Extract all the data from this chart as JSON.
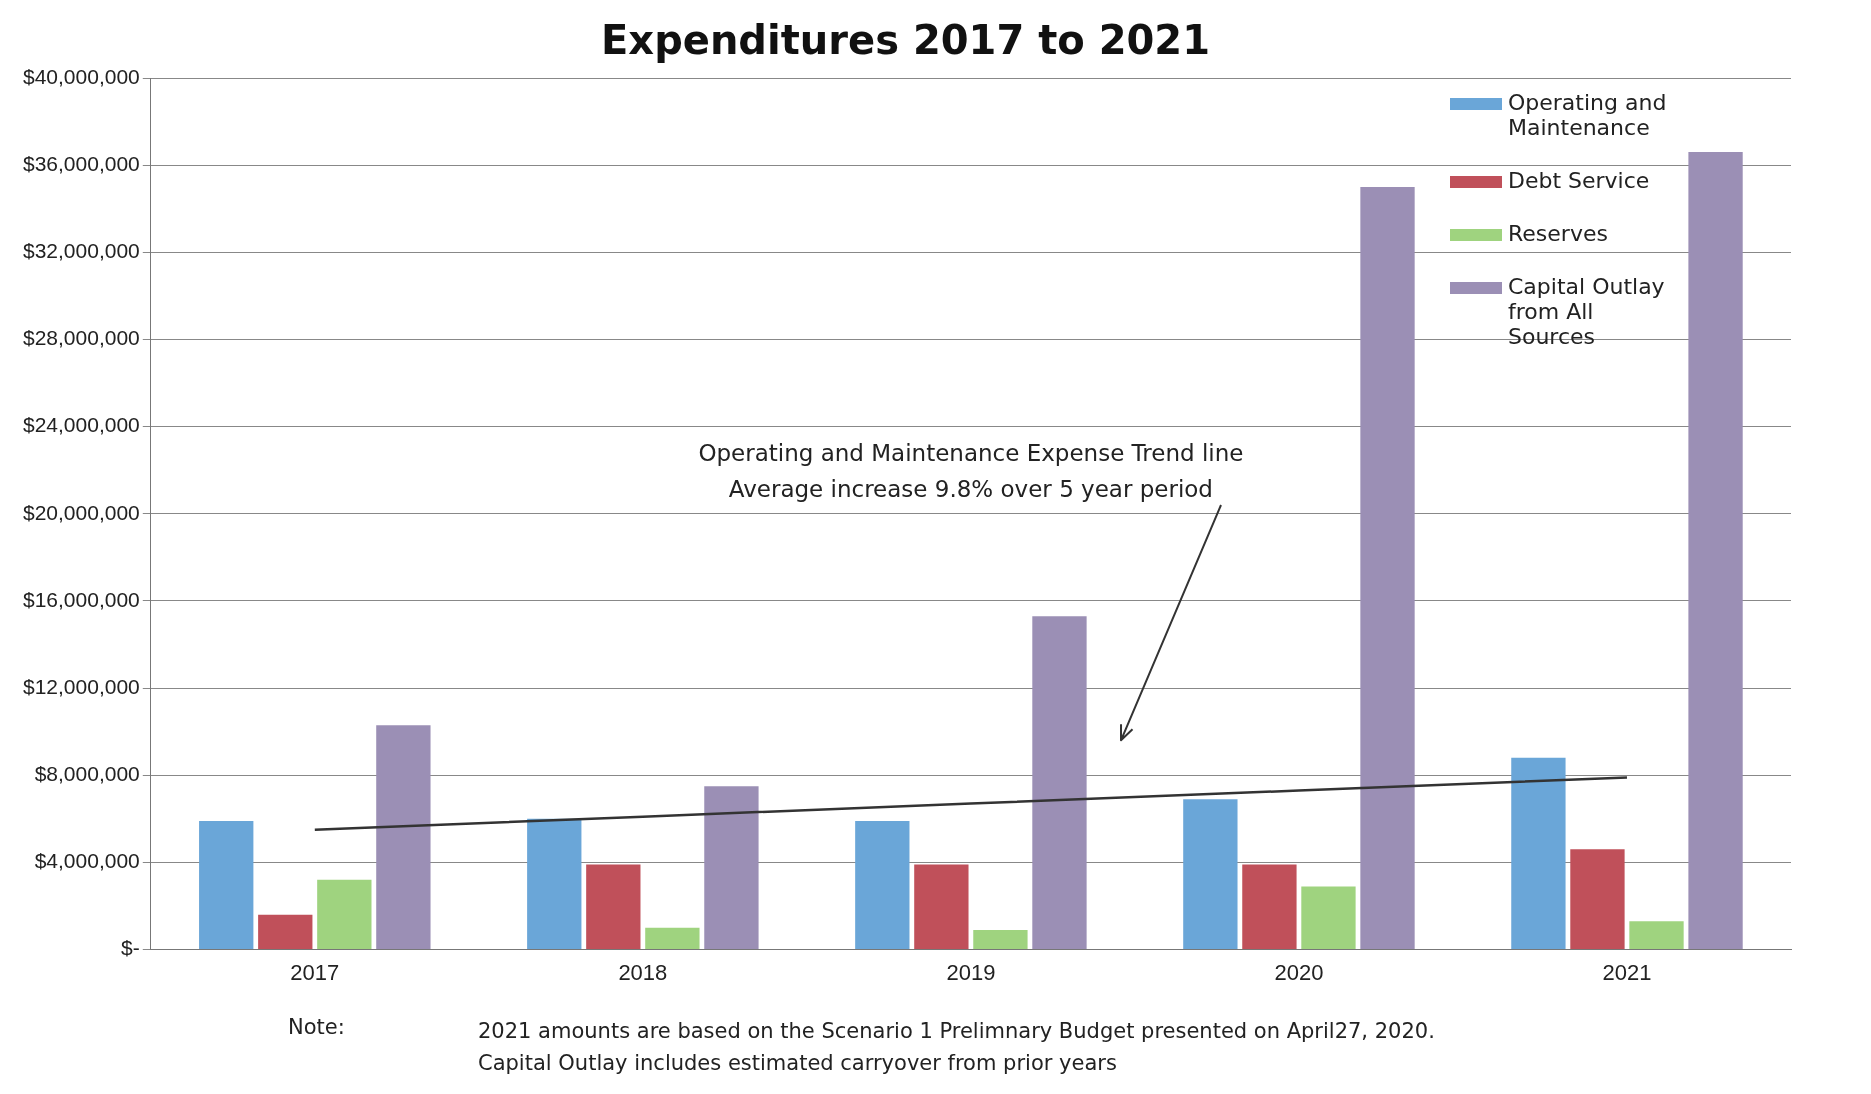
{
  "chart_data": {
    "type": "bar",
    "title": "Expenditures 2017 to 2021",
    "categories": [
      "2017",
      "2018",
      "2019",
      "2020",
      "2021"
    ],
    "series": [
      {
        "name": "Operating and Maintenance",
        "color": "#6aa6d8",
        "values": [
          5900000,
          6000000,
          5900000,
          6900000,
          8800000
        ]
      },
      {
        "name": "Debt Service",
        "color": "#c0505a",
        "values": [
          1600000,
          3900000,
          3900000,
          3900000,
          4600000
        ]
      },
      {
        "name": "Reserves",
        "color": "#9fd37f",
        "values": [
          3200000,
          1000000,
          900000,
          2900000,
          1300000
        ]
      },
      {
        "name": "Capital Outlay from All Sources",
        "color": "#9b8fb5",
        "values": [
          10300000,
          7500000,
          15300000,
          35000000,
          36600000
        ]
      },
      {
        "type": "line",
        "color": "#333333",
        "values": [
          5500000,
          6100000,
          6700000,
          7300000,
          7900000
        ]
      }
    ],
    "ylim": [
      0,
      40000000
    ],
    "yticks": [
      {
        "value": 0,
        "label": "$-"
      },
      {
        "value": 4000000,
        "label": "$4,000,000"
      },
      {
        "value": 8000000,
        "label": "$8,000,000"
      },
      {
        "value": 12000000,
        "label": "$12,000,000"
      },
      {
        "value": 16000000,
        "label": "$16,000,000"
      },
      {
        "value": 20000000,
        "label": "$20,000,000"
      },
      {
        "value": 24000000,
        "label": "$24,000,000"
      },
      {
        "value": 28000000,
        "label": "$28,000,000"
      },
      {
        "value": 32000000,
        "label": "$32,000,000"
      },
      {
        "value": 36000000,
        "label": "$36,000,000"
      },
      {
        "value": 40000000,
        "label": "$40,000,000"
      }
    ],
    "grid": "y",
    "legend": "top right",
    "marker": "none",
    "annotations": [
      "Operating and Maintenance Expense Trend line\nAverage increase 9.8% over 5 year period",
      "Note:",
      "2021 amounts are based on the Scenario 1 Prelimnary Budget presented on April27, 2020.\nCapital Outlay includes estimated carryover from prior years"
    ]
  }
}
